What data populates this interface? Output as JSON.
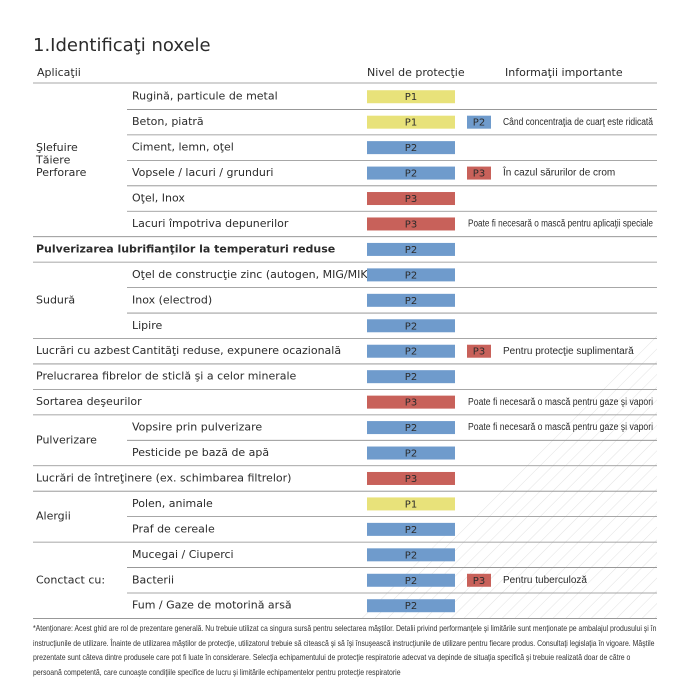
{
  "title": "1.Identificaţi noxele",
  "header": {
    "applications": "Aplicaţii",
    "protection": "Nivel de protecţie",
    "info": "Informaţii importante"
  },
  "level_colors": {
    "P1": "#e8e27a",
    "P2": "#6f9bcc",
    "P3": "#c8615a"
  },
  "sections": [
    {
      "label": [
        "Şlefuire",
        "Tăiere",
        "Perforare"
      ],
      "rows": [
        {
          "label": "Rugină, particule de metal",
          "level": "P1"
        },
        {
          "label": "Beton, piatră",
          "level": "P1",
          "extra": "P2",
          "info": "Când concentraţia de cuarţ este ridicată"
        },
        {
          "label": "Ciment, lemn, oţel",
          "level": "P2"
        },
        {
          "label": "Vopsele / lacuri / grunduri",
          "level": "P2",
          "extra": "P3",
          "info": "În cazul sărurilor de crom"
        },
        {
          "label": "Oţel, Inox",
          "level": "P3"
        },
        {
          "label": "Lacuri împotriva depunerilor",
          "level": "P3",
          "info": "Poate fi necesară o mască pentru aplicaţii speciale"
        }
      ]
    },
    {
      "label": [
        "Pulverizarea lubrifianţilor la temperaturi reduse"
      ],
      "bold": true,
      "rows": [
        {
          "level": "P2"
        }
      ]
    },
    {
      "label": [
        "Sudură"
      ],
      "rows": [
        {
          "label": "Oţel de construcţie zinc (autogen, MIG/MIK)",
          "level": "P2"
        },
        {
          "label": "Inox (electrod)",
          "level": "P2"
        },
        {
          "label": "Lipire",
          "level": "P2"
        }
      ]
    },
    {
      "label": [
        "Lucrări cu azbest"
      ],
      "rows": [
        {
          "label": "Cantităţi reduse, expunere ocazională",
          "level": "P2",
          "extra": "P3",
          "info": "Pentru protecţie suplimentară"
        }
      ]
    },
    {
      "label": [
        "Prelucrarea fibrelor de sticlă şi a celor minerale"
      ],
      "rows": [
        {
          "level": "P2"
        }
      ]
    },
    {
      "label": [
        "Sortarea deşeurilor"
      ],
      "rows": [
        {
          "level": "P3",
          "info": "Poate fi necesară o mască pentru gaze şi vapori"
        }
      ]
    },
    {
      "label": [
        "Pulverizare"
      ],
      "rows": [
        {
          "label": "Vopsire prin pulverizare",
          "level": "P2",
          "info": "Poate fi necesară o mască pentru gaze şi vapori"
        },
        {
          "label": "Pesticide pe bază de apă",
          "level": "P2"
        }
      ]
    },
    {
      "label": [
        "Lucrări de întreţinere (ex. schimbarea filtrelor)"
      ],
      "rows": [
        {
          "level": "P3"
        }
      ]
    },
    {
      "label": [
        "Alergii"
      ],
      "rows": [
        {
          "label": "Polen, animale",
          "level": "P1"
        },
        {
          "label": "Praf de cereale",
          "level": "P2"
        }
      ]
    },
    {
      "label": [
        "Conctact cu:"
      ],
      "rows": [
        {
          "label": "Mucegai / Ciuperci",
          "level": "P2"
        },
        {
          "label": "Bacterii",
          "level": "P2",
          "extra": "P3",
          "info": "Pentru tuberculoză"
        },
        {
          "label": "Fum / Gaze de motorină arsă",
          "level": "P2"
        }
      ]
    }
  ],
  "footnote": "*Atenţionare: Acest ghid are rol de prezentare generală. Nu trebuie utilizat ca singura sursă pentru selectarea măştilor. Detalii privind performanţele şi limitările sunt menţionate pe ambalajul produsului şi în instrucţiunile de utilizare. Înainte de utilizarea măştilor de protecţie, utilizatorul trebuie să citească şi să îşi însuşească instrucţiunile de utilizare pentru fiecare produs. Consultaţi legislaţia în vigoare. Măştile prezentate sunt câteva dintre produsele care pot fi luate în considerare. Selecţia echipamentului de protecţie respiratorie adecvat va depinde de situaţia specifică şi trebuie realizată doar de către o persoană competentă, care cunoaşte condiţiile specifice de lucru şi limitările echipamentelor pentru protecţie respiratorie"
}
